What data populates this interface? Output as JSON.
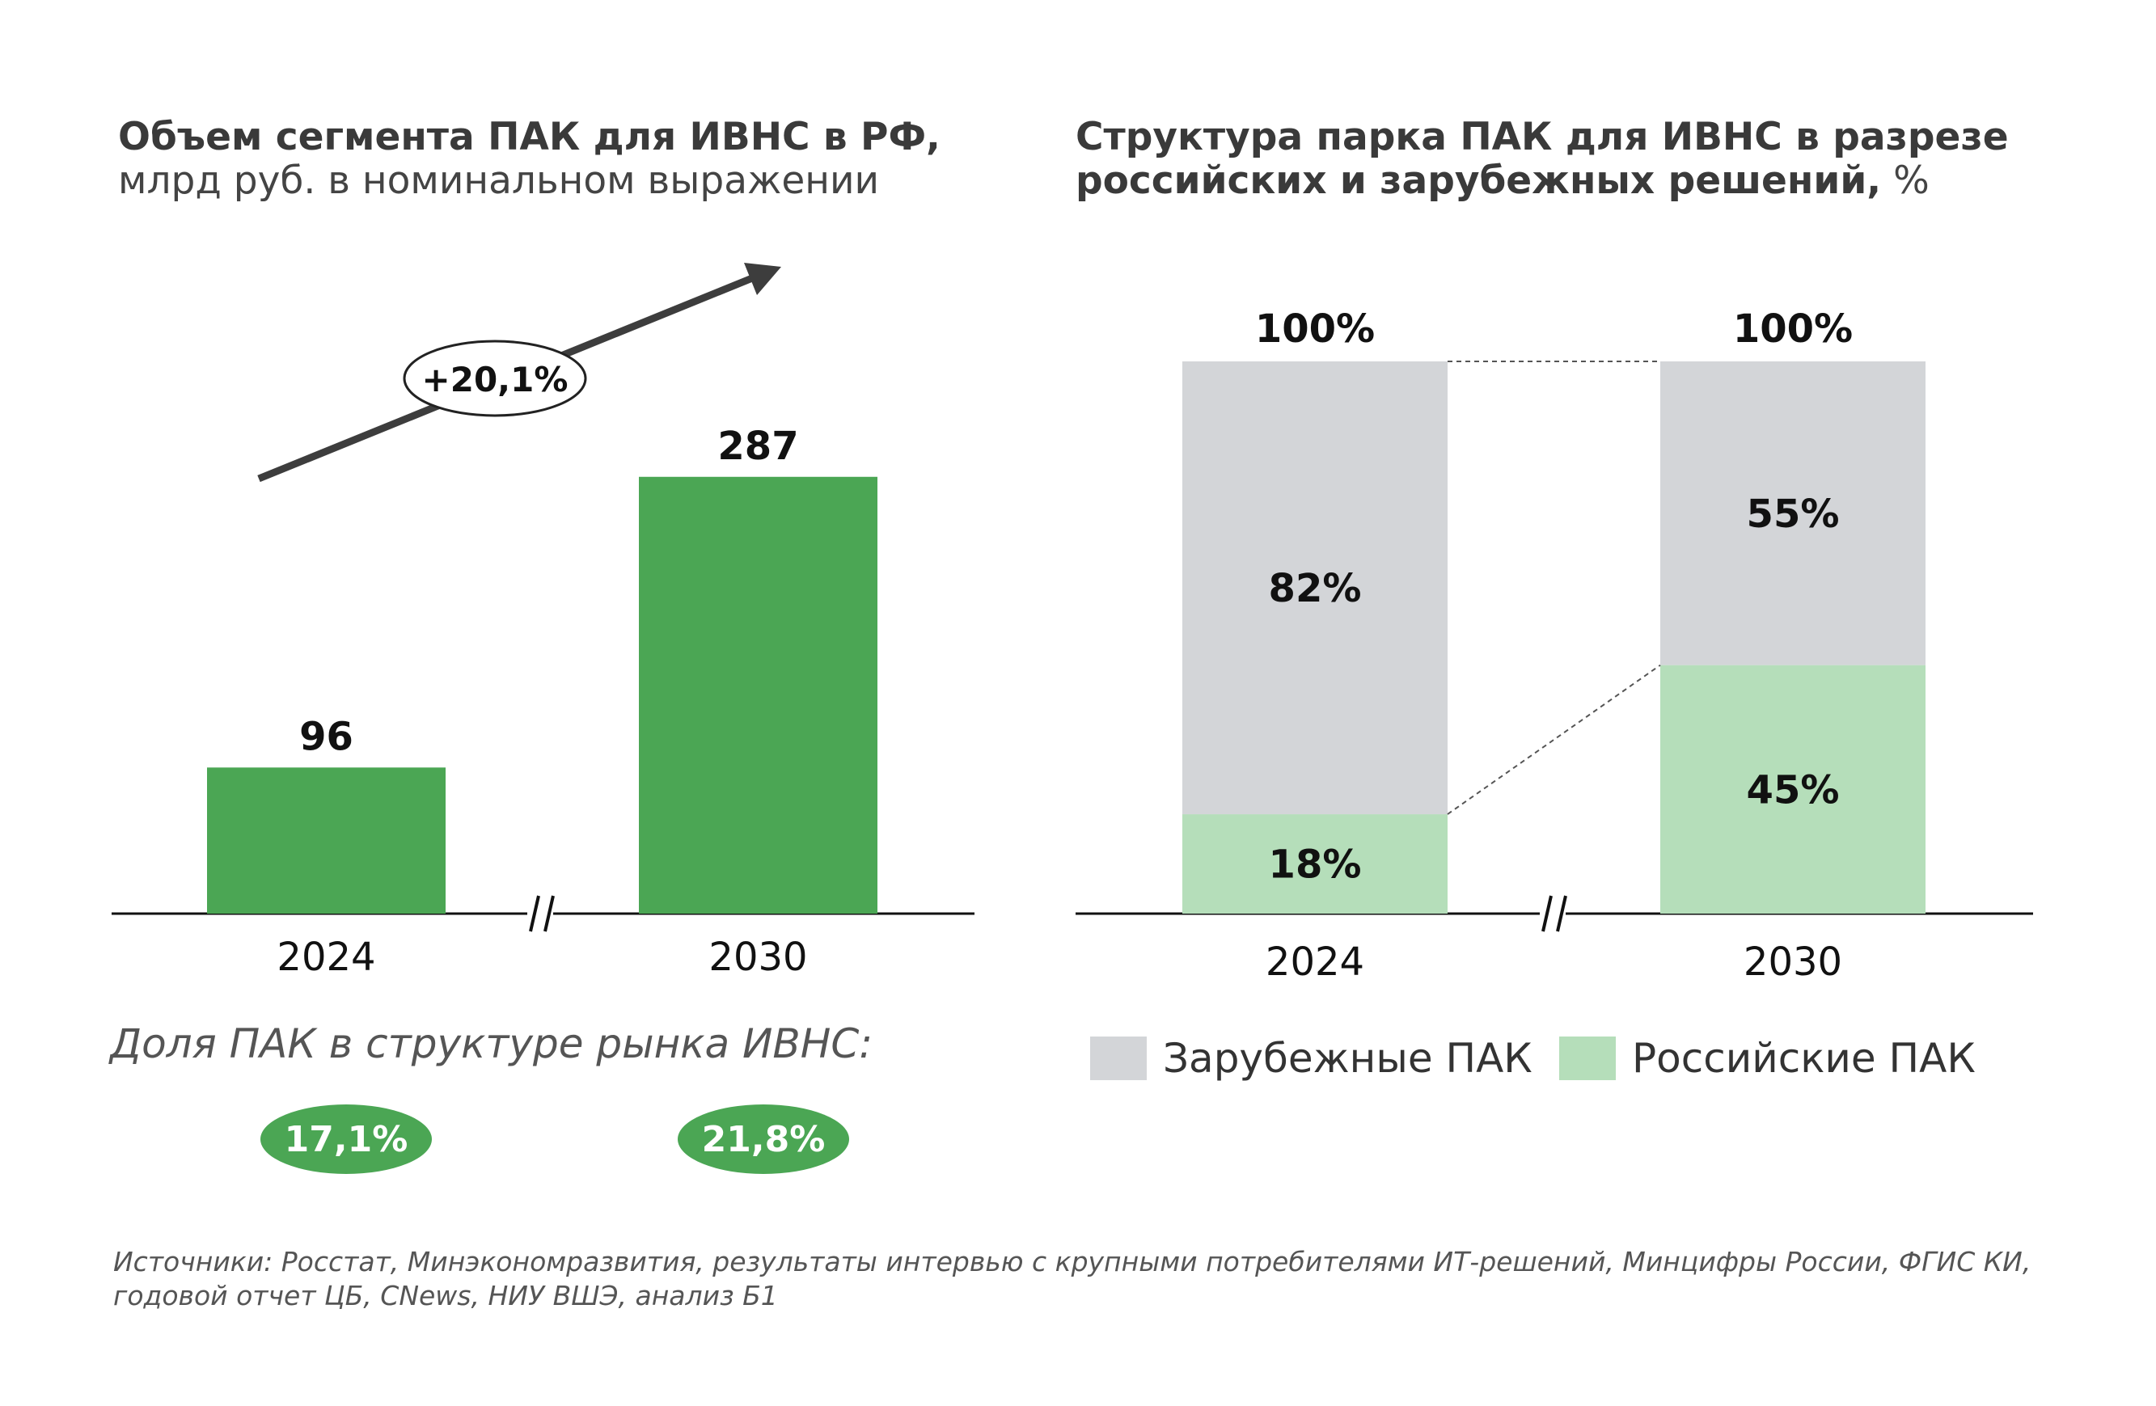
{
  "left_chart": {
    "title_bold": "Объем сегмента ПАК для ИВНС в РФ,",
    "title_rest": "млрд руб. в номинальном выражении",
    "growth_label": "+20,1%",
    "share_label": "Доля ПАК в структуре рынка ИВНС:",
    "shares": [
      "17,1%",
      "21,8%"
    ]
  },
  "right_chart": {
    "title_bold": "Структура парка ПАК для ИВНС в разрезе российских и зарубежных решений,",
    "title_unit": "%",
    "legend": [
      "Зарубежные ПАК",
      "Российские ПАК"
    ]
  },
  "source_text": "Источники: Росстат, Минэкономразвития, результаты интервью с крупными потребителями ИТ-решений, Минцифры России, ФГИС КИ, годовой отчет ЦБ, CNews, НИУ ВШЭ, анализ Б1",
  "colors": {
    "green": "#4ba654",
    "light_green": "#b5deba",
    "grey": "#d3d5d8",
    "dark": "#3a3a3a"
  },
  "chart_data": [
    {
      "type": "bar",
      "categories": [
        "2024",
        "2030"
      ],
      "values": [
        96,
        287
      ],
      "value_labels": [
        "96",
        "287"
      ],
      "ylim": [
        0,
        340
      ],
      "axis_break": true,
      "annotation": "+20,1%"
    },
    {
      "type": "bar",
      "stacked": true,
      "categories": [
        "2024",
        "2030"
      ],
      "totals": [
        "100%",
        "100%"
      ],
      "series": [
        {
          "name": "Российские ПАК",
          "values": [
            18,
            45
          ],
          "labels": [
            "18%",
            "45%"
          ]
        },
        {
          "name": "Зарубежные ПАК",
          "values": [
            82,
            55
          ],
          "labels": [
            "82%",
            "55%"
          ]
        }
      ],
      "ylim": [
        0,
        100
      ],
      "axis_break": true
    }
  ]
}
